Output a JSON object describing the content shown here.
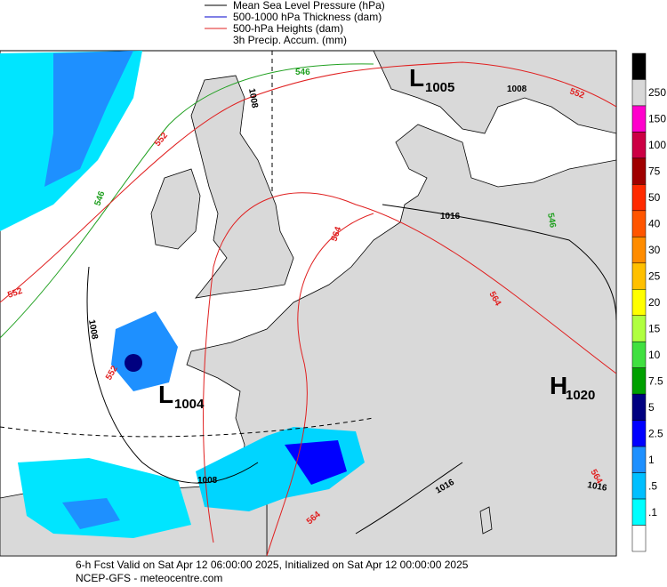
{
  "legend": [
    {
      "label": "Mean Sea Level Pressure (hPa)",
      "color": "#000000"
    },
    {
      "label": "500-1000 hPa Thickness (dam)",
      "color": "#0000cc"
    },
    {
      "label": "500-hPa Heights (dam)",
      "color": "#e02020"
    },
    {
      "label": "3h Precip. Accum. (mm)"
    }
  ],
  "colorbar": {
    "colors": [
      "#000000",
      "#d8d8d8",
      "#ff00cc",
      "#cc0044",
      "#a00000",
      "#ff2a00",
      "#ff5500",
      "#ff8c00",
      "#ffc000",
      "#ffff00",
      "#b0ff40",
      "#40e040",
      "#00a000",
      "#000080",
      "#0000ff",
      "#1e90ff",
      "#00bfff",
      "#00ffff",
      "#ffffff"
    ],
    "labels": [
      "250",
      "150",
      "100",
      "75",
      "50",
      "40",
      "30",
      "25",
      "20",
      "15",
      "10",
      "7.5",
      "5",
      "2.5",
      "1",
      ".5",
      ".1"
    ]
  },
  "map": {
    "centers": [
      {
        "symbol": "L",
        "value": "1005"
      },
      {
        "symbol": "L",
        "value": "1004"
      },
      {
        "symbol": "H",
        "value": "1020"
      }
    ],
    "contour_labels": [
      {
        "text": "546",
        "color": "#20a020"
      },
      {
        "text": "546",
        "color": "#20a020"
      },
      {
        "text": "546",
        "color": "#20a020"
      },
      {
        "text": "552",
        "color": "#e02020"
      },
      {
        "text": "552",
        "color": "#e02020"
      },
      {
        "text": "552",
        "color": "#e02020"
      },
      {
        "text": "552",
        "color": "#e02020"
      },
      {
        "text": "564",
        "color": "#e02020"
      },
      {
        "text": "564",
        "color": "#e02020"
      },
      {
        "text": "564",
        "color": "#e02020"
      },
      {
        "text": "564",
        "color": "#e02020"
      },
      {
        "text": "1008",
        "color": "#000000"
      },
      {
        "text": "1008",
        "color": "#000000"
      },
      {
        "text": "1008",
        "color": "#000000"
      },
      {
        "text": "1008",
        "color": "#000000"
      },
      {
        "text": "1016",
        "color": "#000000"
      },
      {
        "text": "1016",
        "color": "#000000"
      },
      {
        "text": "1016",
        "color": "#000000"
      }
    ]
  },
  "footer": {
    "line1": "6-h Fcst Valid on Sat Apr 12 06:00:00 2025, Initialized on Sat Apr 12 00:00:00 2025",
    "line2": "NCEP-GFS  -  meteocentre.com"
  }
}
